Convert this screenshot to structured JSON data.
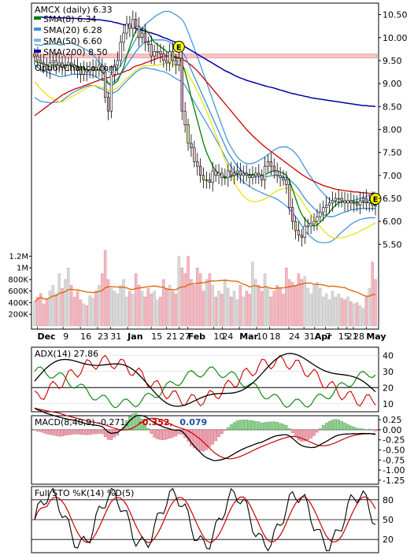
{
  "chart_data": [
    {
      "panel": "price",
      "type": "candlestick",
      "title": "AMCX (daily) 6.33",
      "watermark": "OptionChance.com",
      "legend": [
        {
          "label": "SMA(8) 6.34",
          "color": "#008000"
        },
        {
          "label": "SMA(20) 6.28",
          "color": "#3a8fd6"
        },
        {
          "label": "SMA(50) 6.60",
          "color": "#7ab8e8"
        },
        {
          "label": "SMA(200) 8.50",
          "color": "#0000aa"
        }
      ],
      "ylim": [
        5.3,
        10.75
      ],
      "y_ticks": [
        "10.50",
        "10.00",
        "9.50",
        "9.00",
        "8.50",
        "8.00",
        "7.50",
        "7.00",
        "6.50",
        "6.00",
        "5.50"
      ],
      "x_labels": [
        "Dec",
        "9",
        "16",
        "23",
        "31",
        "Jan",
        "15",
        "21",
        "27",
        "Feb",
        "10",
        "24",
        "Mar",
        "10",
        "18",
        "24",
        "31",
        "Apr",
        "7",
        "15",
        "21",
        "28",
        "May"
      ],
      "bold_x_labels": [
        "Dec",
        "Jan",
        "Feb",
        "Mar",
        "Apr",
        "May"
      ],
      "resistance_level": 9.6,
      "event_markers": [
        {
          "label": "E",
          "day": 47,
          "price": 9.8
        },
        {
          "label": "E",
          "day": 111,
          "price": 6.49
        }
      ],
      "closes": [
        9.6,
        9.5,
        9.45,
        9.4,
        9.3,
        9.45,
        9.5,
        9.4,
        9.45,
        9.35,
        9.4,
        9.45,
        9.4,
        9.35,
        9.3,
        9.2,
        9.3,
        9.25,
        9.3,
        9.35,
        9.3,
        9.4,
        9.25,
        8.7,
        8.4,
        9.2,
        9.4,
        9.5,
        9.9,
        10.1,
        10.3,
        10.2,
        10.4,
        10.25,
        10.0,
        10.1,
        9.9,
        9.85,
        9.6,
        9.7,
        9.7,
        9.65,
        9.5,
        9.45,
        9.7,
        9.5,
        9.4,
        9.55,
        8.4,
        8.1,
        7.7,
        7.6,
        7.3,
        7.2,
        7.0,
        6.9,
        6.9,
        6.85,
        7.1,
        7.0,
        7.05,
        6.95,
        6.95,
        7.1,
        7.0,
        7.05,
        7.1,
        7.0,
        7.05,
        7.0,
        6.95,
        7.0,
        7.05,
        7.0,
        6.9,
        7.2,
        7.3,
        7.2,
        7.1,
        7.0,
        6.95,
        6.9,
        6.8,
        6.3,
        6.0,
        5.8,
        5.7,
        5.65,
        5.9,
        5.9,
        5.95,
        6.0,
        6.1,
        6.2,
        6.3,
        6.35,
        6.4,
        6.45,
        6.5,
        6.5,
        6.45,
        6.4,
        6.45,
        6.4,
        6.4,
        6.35,
        6.45,
        6.5,
        6.4,
        6.45,
        6.35,
        6.33
      ],
      "sma8": [
        9.5,
        9.45,
        9.45,
        9.42,
        9.4,
        9.4,
        9.4,
        9.4,
        9.4,
        9.4,
        9.4,
        9.4,
        9.4,
        9.4,
        9.38,
        9.35,
        9.33,
        9.3,
        9.3,
        9.3,
        9.3,
        9.3,
        9.28,
        9.15,
        9.0,
        8.95,
        9.0,
        9.05,
        9.2,
        9.35,
        9.6,
        9.8,
        10.0,
        10.15,
        10.2,
        10.2,
        10.18,
        10.1,
        10.0,
        9.9,
        9.85,
        9.8,
        9.75,
        9.7,
        9.65,
        9.6,
        9.55,
        9.55,
        9.45,
        9.25,
        9.0,
        8.7,
        8.45,
        8.2,
        7.95,
        7.7,
        7.5,
        7.35,
        7.2,
        7.1,
        7.05,
        7.0,
        6.97,
        6.96,
        6.98,
        7.0,
        7.02,
        7.03,
        7.03,
        7.03,
        7.02,
        7.02,
        7.02,
        7.02,
        7.0,
        7.02,
        7.05,
        7.08,
        7.1,
        7.1,
        7.07,
        7.05,
        7.0,
        6.88,
        6.7,
        6.5,
        6.3,
        6.15,
        6.05,
        5.98,
        5.92,
        5.9,
        5.92,
        5.98,
        6.05,
        6.12,
        6.2,
        6.28,
        6.35,
        6.4,
        6.42,
        6.43,
        6.43,
        6.43,
        6.43,
        6.42,
        6.42,
        6.42,
        6.41,
        6.41,
        6.38,
        6.34
      ],
      "sma20": [
        9.4,
        9.35,
        9.3,
        9.28,
        9.25,
        9.22,
        9.2,
        9.18,
        9.15,
        9.15,
        9.17,
        9.18,
        9.2,
        9.2,
        9.2,
        9.2,
        9.2,
        9.2,
        9.2,
        9.18,
        9.15,
        9.1,
        9.08,
        9.05,
        9.0,
        9.0,
        9.05,
        9.1,
        9.2,
        9.3,
        9.4,
        9.5,
        9.6,
        9.7,
        9.78,
        9.85,
        9.9,
        9.92,
        9.93,
        9.95,
        9.95,
        9.95,
        9.95,
        9.93,
        9.9,
        9.85,
        9.8,
        9.75,
        9.7,
        9.6,
        9.45,
        9.3,
        9.15,
        9.0,
        8.85,
        8.7,
        8.55,
        8.4,
        8.25,
        8.1,
        7.95,
        7.8,
        7.65,
        7.5,
        7.4,
        7.3,
        7.2,
        7.13,
        7.07,
        7.03,
        7.0,
        6.98,
        6.97,
        6.97,
        6.97,
        6.97,
        6.98,
        6.99,
        7.0,
        7.0,
        6.99,
        6.97,
        6.95,
        6.9,
        6.85,
        6.78,
        6.7,
        6.6,
        6.5,
        6.42,
        6.35,
        6.28,
        6.22,
        6.18,
        6.15,
        6.12,
        6.1,
        6.1,
        6.12,
        6.15,
        6.18,
        6.2,
        6.22,
        6.25,
        6.26,
        6.27,
        6.28,
        6.28,
        6.28,
        6.28,
        6.28,
        6.28
      ],
      "sma50": [
        8.3,
        8.35,
        8.4,
        8.45,
        8.5,
        8.55,
        8.6,
        8.65,
        8.7,
        8.75,
        8.78,
        8.82,
        8.85,
        8.88,
        8.9,
        8.92,
        8.95,
        8.97,
        9.0,
        9.02,
        9.05,
        9.07,
        9.1,
        9.12,
        9.13,
        9.15,
        9.17,
        9.2,
        9.22,
        9.25,
        9.28,
        9.3,
        9.35,
        9.38,
        9.4,
        9.42,
        9.45,
        9.47,
        9.5,
        9.52,
        9.55,
        9.57,
        9.6,
        9.6,
        9.6,
        9.6,
        9.58,
        9.56,
        9.53,
        9.5,
        9.45,
        9.4,
        9.34,
        9.28,
        9.2,
        9.12,
        9.04,
        8.96,
        8.88,
        8.8,
        8.72,
        8.64,
        8.56,
        8.48,
        8.4,
        8.32,
        8.24,
        8.16,
        8.08,
        8.0,
        7.93,
        7.86,
        7.8,
        7.74,
        7.68,
        7.62,
        7.57,
        7.52,
        7.47,
        7.42,
        7.37,
        7.32,
        7.27,
        7.22,
        7.17,
        7.12,
        7.07,
        7.02,
        6.98,
        6.94,
        6.9,
        6.87,
        6.84,
        6.81,
        6.78,
        6.76,
        6.74,
        6.72,
        6.7,
        6.69,
        6.68,
        6.67,
        6.66,
        6.65,
        6.64,
        6.64,
        6.63,
        6.62,
        6.62,
        6.61,
        6.61,
        6.6
      ],
      "sma200": [
        10.45,
        10.45,
        10.45,
        10.44,
        10.44,
        10.44,
        10.44,
        10.43,
        10.43,
        10.43,
        10.43,
        10.42,
        10.42,
        10.42,
        10.41,
        10.41,
        10.41,
        10.4,
        10.4,
        10.4,
        10.39,
        10.39,
        10.38,
        10.37,
        10.36,
        10.35,
        10.33,
        10.32,
        10.3,
        10.28,
        10.27,
        10.25,
        10.23,
        10.2,
        10.18,
        10.16,
        10.14,
        10.12,
        10.1,
        10.08,
        10.06,
        10.03,
        10.0,
        9.98,
        9.95,
        9.92,
        9.9,
        9.87,
        9.84,
        9.8,
        9.76,
        9.72,
        9.68,
        9.64,
        9.6,
        9.56,
        9.52,
        9.48,
        9.44,
        9.4,
        9.36,
        9.32,
        9.28,
        9.25,
        9.22,
        9.18,
        9.15,
        9.12,
        9.1,
        9.07,
        9.05,
        9.03,
        9.01,
        8.99,
        8.97,
        8.95,
        8.93,
        8.92,
        8.9,
        8.88,
        8.86,
        8.84,
        8.82,
        8.8,
        8.78,
        8.77,
        8.75,
        8.74,
        8.72,
        8.71,
        8.69,
        8.68,
        8.67,
        8.66,
        8.65,
        8.64,
        8.63,
        8.62,
        8.61,
        8.6,
        8.59,
        8.58,
        8.57,
        8.56,
        8.55,
        8.54,
        8.53,
        8.52,
        8.52,
        8.51,
        8.51,
        8.5
      ]
    },
    {
      "panel": "volume",
      "type": "bar",
      "y_ticks": [
        "1.2M",
        "1M",
        "800K",
        "600K",
        "400K",
        "200K"
      ],
      "ylim": [
        0,
        1300000
      ],
      "values": [
        420000,
        500000,
        560000,
        380000,
        450000,
        600000,
        700000,
        550000,
        900000,
        650000,
        800000,
        1000000,
        700000,
        500000,
        600000,
        450000,
        380000,
        350000,
        520000,
        480000,
        600000,
        700000,
        900000,
        1300000,
        800000,
        650000,
        600000,
        550000,
        700000,
        800000,
        500000,
        600000,
        550000,
        900000,
        700000,
        600000,
        500000,
        650000,
        550000,
        600000,
        450000,
        500000,
        800000,
        650000,
        700000,
        600000,
        550000,
        1200000,
        1000000,
        900000,
        1200000,
        800000,
        700000,
        1000000,
        900000,
        600000,
        800000,
        900000,
        700000,
        500000,
        600000,
        550000,
        800000,
        650000,
        500000,
        600000,
        450000,
        700000,
        500000,
        600000,
        550000,
        1100000,
        800000,
        700000,
        600000,
        900000,
        650000,
        500000,
        600000,
        700000,
        650000,
        550000,
        1000000,
        800000,
        750000,
        700000,
        900000,
        800000,
        850000,
        650000,
        550000,
        700000,
        750000,
        650000,
        500000,
        550000,
        450000,
        600000,
        500000,
        550000,
        480000,
        450000,
        500000,
        420000,
        380000,
        400000,
        350000,
        300000,
        500000,
        650000,
        1100000,
        800000
      ],
      "avg_line_color": "#e06000"
    },
    {
      "panel": "adx",
      "type": "line",
      "label": "ADX(14) 27.86",
      "ylim": [
        5,
        45
      ],
      "y_ticks": [
        "40",
        "30",
        "20",
        "10"
      ],
      "series": [
        {
          "name": "ADX",
          "color": "#000000"
        },
        {
          "name": "+DI",
          "color": "#008000"
        },
        {
          "name": "-DI",
          "color": "#cc0000"
        }
      ]
    },
    {
      "panel": "macd",
      "type": "line",
      "label": "MACD(8,40,9)",
      "values_label": [
        "-0.271,",
        "-0.352,",
        "0.079"
      ],
      "value_colors": [
        "#000000",
        "#cc0000",
        "#1a4fa0"
      ],
      "ylim": [
        -1.35,
        0.35
      ],
      "y_ticks": [
        "0.25",
        "0.00",
        "-0.25",
        "-0.50",
        "-0.75",
        "-1.00",
        "-1.25"
      ]
    },
    {
      "panel": "stochastic",
      "type": "line",
      "label": "Full STO %K(14) %D(5)",
      "ylim": [
        0,
        100
      ],
      "y_ticks": [
        "80",
        "50",
        "20"
      ]
    }
  ]
}
